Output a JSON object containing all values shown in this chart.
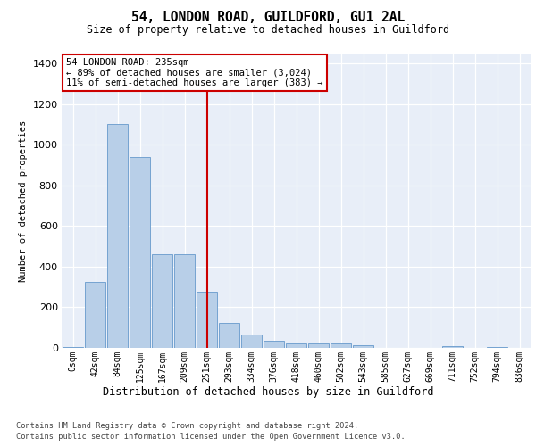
{
  "title": "54, LONDON ROAD, GUILDFORD, GU1 2AL",
  "subtitle": "Size of property relative to detached houses in Guildford",
  "xlabel": "Distribution of detached houses by size in Guildford",
  "ylabel": "Number of detached properties",
  "categories": [
    "0sqm",
    "42sqm",
    "84sqm",
    "125sqm",
    "167sqm",
    "209sqm",
    "251sqm",
    "293sqm",
    "334sqm",
    "376sqm",
    "418sqm",
    "460sqm",
    "502sqm",
    "543sqm",
    "585sqm",
    "627sqm",
    "669sqm",
    "711sqm",
    "752sqm",
    "794sqm",
    "836sqm"
  ],
  "values": [
    5,
    325,
    1105,
    940,
    460,
    460,
    275,
    125,
    65,
    35,
    20,
    22,
    20,
    15,
    0,
    0,
    0,
    10,
    0,
    5,
    0
  ],
  "bar_color": "#b8cfe8",
  "bar_edge_color": "#6699cc",
  "vline_x": 6,
  "vline_color": "#cc0000",
  "annotation_text_line1": "54 LONDON ROAD: 235sqm",
  "annotation_text_line2": "← 89% of detached houses are smaller (3,024)",
  "annotation_text_line3": "11% of semi-detached houses are larger (383) →",
  "ylim": [
    0,
    1450
  ],
  "yticks": [
    0,
    200,
    400,
    600,
    800,
    1000,
    1200,
    1400
  ],
  "footer_line1": "Contains HM Land Registry data © Crown copyright and database right 2024.",
  "footer_line2": "Contains public sector information licensed under the Open Government Licence v3.0.",
  "plot_bg_color": "#e8eef8",
  "grid_color": "#ffffff"
}
